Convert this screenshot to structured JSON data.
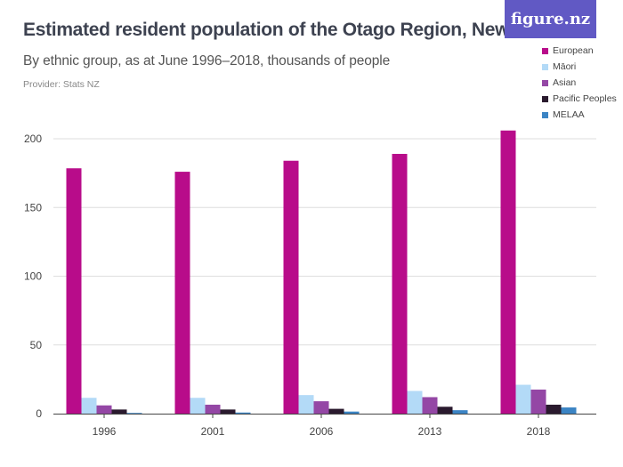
{
  "header": {
    "title": "Estimated resident population of the Otago Region, New Zealand",
    "subtitle": "By ethnic group, as at June 1996–2018, thousands of people",
    "provider": "Provider: Stats NZ",
    "logo": "figure.nz"
  },
  "chart_data": {
    "type": "bar",
    "title": "Estimated resident population of the Otago Region, New Zealand",
    "xlabel": "",
    "ylabel": "thousands of people",
    "categories": [
      "1996",
      "2001",
      "2006",
      "2013",
      "2018"
    ],
    "ylim": [
      0,
      200
    ],
    "yticks": [
      "0",
      "50",
      "100",
      "150",
      "200"
    ],
    "series": [
      {
        "name": "European",
        "color": "#b80c8a",
        "values": [
          178.5,
          176,
          184,
          189,
          206
        ]
      },
      {
        "name": "Māori",
        "color": "#b3daf7",
        "values": [
          11.5,
          11.5,
          13.5,
          16.5,
          21
        ]
      },
      {
        "name": "Asian",
        "color": "#9447a5",
        "values": [
          6,
          6.5,
          9,
          12,
          17.5
        ]
      },
      {
        "name": "Pacific Peoples",
        "color": "#2a1a2e",
        "values": [
          3,
          3,
          3.5,
          5,
          6.5
        ]
      },
      {
        "name": "MELAA",
        "color": "#3b84c4",
        "values": [
          0.5,
          0.8,
          1.5,
          2.5,
          4.5
        ]
      }
    ],
    "legend_position": "top-right",
    "grid": true
  }
}
